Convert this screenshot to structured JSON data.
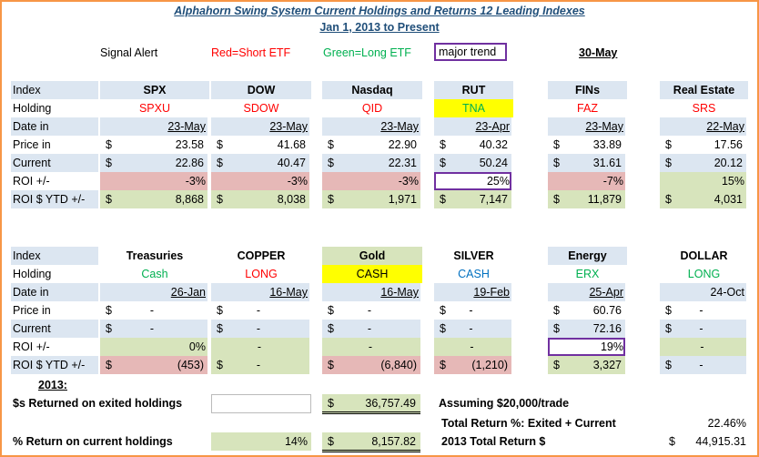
{
  "header": {
    "title": "Alphahorn Swing System Current Holdings and Returns 12 Leading Indexes",
    "subtitle": "Jan 1, 2013 to Present",
    "signal_alert": "Signal Alert",
    "red_legend": "Red=Short ETF",
    "green_legend": "Green=Long ETF",
    "major_trend": "major trend",
    "date": "30-May"
  },
  "blocks": [
    {
      "row_labels": [
        "Index",
        "Holding",
        "Date in",
        "Price in",
        "Current",
        "ROI +/-",
        "ROI $ YTD +/-"
      ],
      "columns": [
        {
          "index": "SPX",
          "holding": "SPXU",
          "date_in": "23-May",
          "price_in": [
            "$",
            "23.58"
          ],
          "current": [
            "$",
            "22.86"
          ],
          "roi": "-3%",
          "roi_ytd": [
            "$",
            "8,868"
          ]
        },
        {
          "index": "DOW",
          "holding": "SDOW",
          "date_in": "23-May",
          "price_in": [
            "$",
            "41.68"
          ],
          "current": [
            "$",
            "40.47"
          ],
          "roi": "-3%",
          "roi_ytd": [
            "$",
            "8,038"
          ]
        },
        {
          "index": "Nasdaq",
          "holding": "QID",
          "date_in": "23-May",
          "price_in": [
            "$",
            "22.90"
          ],
          "current": [
            "$",
            "22.31"
          ],
          "roi": "-3%",
          "roi_ytd": [
            "$",
            "1,971"
          ]
        },
        {
          "index": "RUT",
          "holding": "TNA",
          "date_in": "23-Apr",
          "price_in": [
            "$",
            "40.32"
          ],
          "current": [
            "$",
            "50.24"
          ],
          "roi": "25%",
          "roi_ytd": [
            "$",
            "7,147"
          ]
        },
        {
          "index": "FINs",
          "holding": "FAZ",
          "date_in": "23-May",
          "price_in": [
            "$",
            "33.89"
          ],
          "current": [
            "$",
            "31.61"
          ],
          "roi": "-7%",
          "roi_ytd": [
            "$",
            "11,879"
          ]
        },
        {
          "index": "Real Estate",
          "holding": "SRS",
          "date_in": "22-May",
          "price_in": [
            "$",
            "17.56"
          ],
          "current": [
            "$",
            "20.12"
          ],
          "roi": "15%",
          "roi_ytd": [
            "$",
            "4,031"
          ]
        }
      ]
    },
    {
      "row_labels": [
        "Index",
        "Holding",
        "Date in",
        "Price in",
        "Current",
        "ROI +/-",
        "ROI $ YTD +/-"
      ],
      "columns": [
        {
          "index": "Treasuries",
          "holding": "Cash",
          "date_in": "26-Jan",
          "price_in": [
            "$",
            "-"
          ],
          "current": [
            "$",
            "-"
          ],
          "roi": "0%",
          "roi_ytd": [
            "$",
            "(453)"
          ]
        },
        {
          "index": "COPPER",
          "holding": "LONG",
          "date_in": "16-May",
          "price_in": [
            "$",
            "-"
          ],
          "current": [
            "$",
            "-"
          ],
          "roi": "-",
          "roi_ytd": [
            "$",
            "-"
          ]
        },
        {
          "index": "Gold",
          "holding": "CASH",
          "date_in": "16-May",
          "price_in": [
            "$",
            "-"
          ],
          "current": [
            "$",
            "-"
          ],
          "roi": "-",
          "roi_ytd": [
            "$",
            "(6,840)"
          ]
        },
        {
          "index": "SILVER",
          "holding": "CASH",
          "date_in": "19-Feb",
          "price_in": [
            "$",
            "-"
          ],
          "current": [
            "$",
            "-"
          ],
          "roi": "-",
          "roi_ytd": [
            "$",
            "(1,210)"
          ]
        },
        {
          "index": "Energy",
          "holding": "ERX",
          "date_in": "25-Apr",
          "price_in": [
            "$",
            "60.76"
          ],
          "current": [
            "$",
            "72.16"
          ],
          "roi": "19%",
          "roi_ytd": [
            "$",
            "3,327"
          ]
        },
        {
          "index": "DOLLAR",
          "holding": "LONG",
          "date_in": "24-Oct",
          "price_in": [
            "$",
            "-"
          ],
          "current": [
            "$",
            "-"
          ],
          "roi": "-",
          "roi_ytd": [
            "$",
            "-"
          ]
        }
      ]
    }
  ],
  "footer": {
    "year_label": "2013:",
    "exited_label": "$s Returned on exited holdings",
    "exited_value": [
      "$",
      "36,757.49"
    ],
    "assumption": "Assuming $20,000/trade",
    "total_pct_label": "Total Return %: Exited + Current",
    "total_pct": "22.46%",
    "current_label": "% Return on current holdings",
    "current_pct": "14%",
    "current_value": [
      "$",
      "8,157.82"
    ],
    "total_label": "2013 Total Return $",
    "total_value": [
      "$",
      "44,915.31"
    ]
  }
}
